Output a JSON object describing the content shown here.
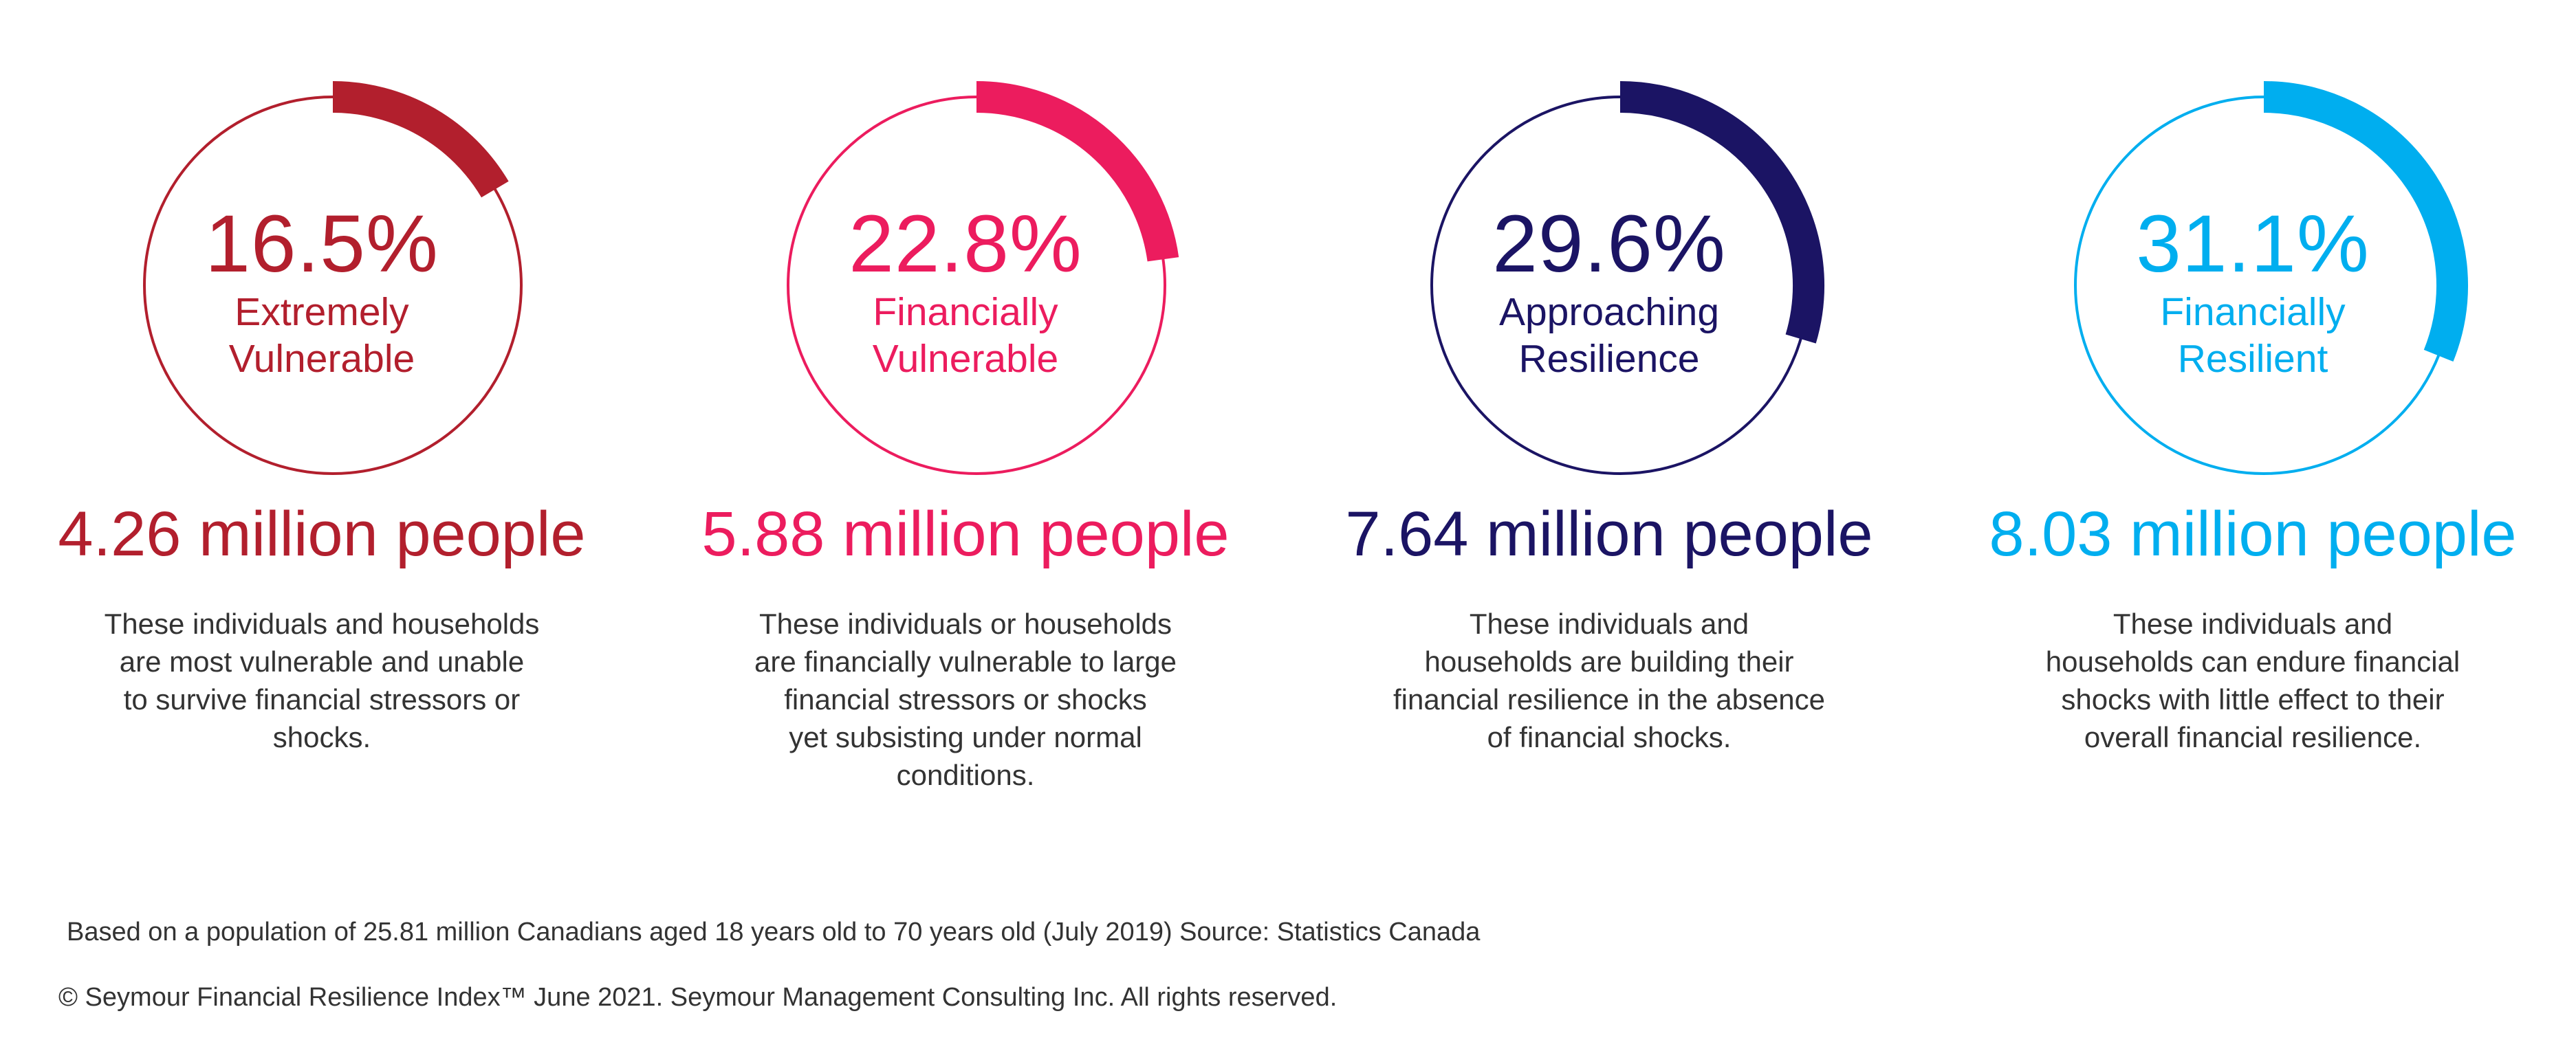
{
  "chart_data": {
    "type": "pie",
    "segments": [
      {
        "percent_label": "16.5%",
        "value": 16.5,
        "category_lines": [
          "Extremely",
          "Vulnerable"
        ],
        "people": "4.26 million people",
        "description_lines": [
          "These individuals and households",
          "are most vulnerable and unable",
          "to survive financial stressors or",
          "shocks."
        ],
        "color": "#B21F2D"
      },
      {
        "percent_label": "22.8%",
        "value": 22.8,
        "category_lines": [
          "Financially",
          "Vulnerable"
        ],
        "people": "5.88 million people",
        "description_lines": [
          "These individuals or households",
          "are financially vulnerable to large",
          "financial stressors or shocks",
          "yet subsisting under normal",
          "conditions."
        ],
        "color": "#EC1C5E"
      },
      {
        "percent_label": "29.6%",
        "value": 29.6,
        "category_lines": [
          "Approaching",
          "Resilience"
        ],
        "people": "7.64 million people",
        "description_lines": [
          "These individuals and",
          "households are building their",
          "financial resilience in the absence",
          "of financial shocks."
        ],
        "color": "#1B1464"
      },
      {
        "percent_label": "31.1%",
        "value": 31.1,
        "category_lines": [
          "Financially",
          "Resilient"
        ],
        "people": "8.03 million people",
        "description_lines": [
          "These individuals and",
          "households can endure financial",
          "shocks with little effect to their",
          "overall financial resilience."
        ],
        "color": "#00AEEF"
      }
    ]
  },
  "footnote": "Based on a population of 25.81 million Canadians aged 18 years old to 70 years old (July 2019) Source: Statistics Canada",
  "copyright": "© Seymour Financial Resilience Index™ June 2021. Seymour Management Consulting Inc. All rights reserved."
}
